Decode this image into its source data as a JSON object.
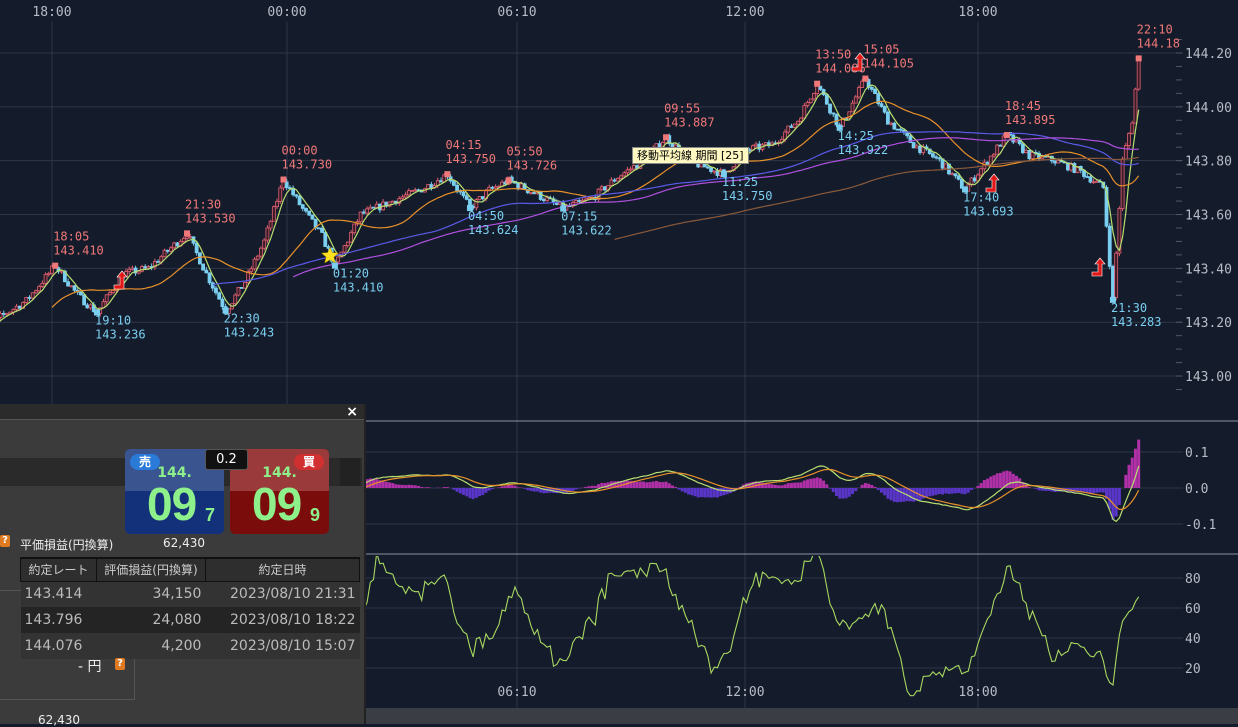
{
  "chart_data": {
    "type": "candlestick",
    "price_axis": {
      "ticks": [
        "144.20",
        "144.00",
        "143.80",
        "143.60",
        "143.40",
        "143.20",
        "143.00"
      ],
      "ylim": [
        142.92,
        144.26
      ]
    },
    "time_axis": {
      "top_ticks": [
        "18:00",
        "00:00",
        "06:10",
        "12:00",
        "18:00"
      ],
      "bottom_ticks": [
        "06:10",
        "12:00",
        "18:00"
      ]
    },
    "path": [
      [
        "16:00",
        143.13
      ],
      [
        "16:40",
        143.22
      ],
      [
        "17:20",
        143.28
      ],
      [
        "18:05",
        143.41,
        "H"
      ],
      [
        "18:40",
        143.3
      ],
      [
        "19:10",
        143.236,
        "L"
      ],
      [
        "19:50",
        143.38
      ],
      [
        "20:30",
        143.4
      ],
      [
        "21:30",
        143.53,
        "H"
      ],
      [
        "22:00",
        143.38
      ],
      [
        "22:30",
        143.243,
        "L"
      ],
      [
        "23:00",
        143.35
      ],
      [
        "23:30",
        143.5
      ],
      [
        "00:00",
        143.73,
        "H"
      ],
      [
        "00:30",
        143.62
      ],
      [
        "01:00",
        143.52
      ],
      [
        "01:20",
        143.41,
        "L"
      ],
      [
        "02:00",
        143.6
      ],
      [
        "03:00",
        143.66
      ],
      [
        "03:40",
        143.7
      ],
      [
        "04:15",
        143.75,
        "H"
      ],
      [
        "04:50",
        143.624,
        "L"
      ],
      [
        "05:20",
        143.69
      ],
      [
        "05:50",
        143.726,
        "H"
      ],
      [
        "06:30",
        143.68
      ],
      [
        "07:15",
        143.622,
        "L"
      ],
      [
        "08:00",
        143.66
      ],
      [
        "08:40",
        143.74
      ],
      [
        "09:20",
        143.8
      ],
      [
        "09:55",
        143.887,
        "H"
      ],
      [
        "10:30",
        143.8
      ],
      [
        "11:25",
        143.75,
        "L"
      ],
      [
        "12:00",
        143.84
      ],
      [
        "12:40",
        143.86
      ],
      [
        "13:20",
        143.95
      ],
      [
        "13:50",
        144.086,
        "H"
      ],
      [
        "14:25",
        143.922,
        "L"
      ],
      [
        "15:05",
        144.105,
        "H"
      ],
      [
        "15:40",
        143.95
      ],
      [
        "16:20",
        143.86
      ],
      [
        "17:00",
        143.8
      ],
      [
        "17:40",
        143.693,
        "L"
      ],
      [
        "18:15",
        143.8
      ],
      [
        "18:45",
        143.895,
        "H"
      ],
      [
        "19:20",
        143.82
      ],
      [
        "20:00",
        143.8
      ],
      [
        "20:40",
        143.76
      ],
      [
        "21:15",
        143.7
      ],
      [
        "21:30",
        143.283,
        "L"
      ],
      [
        "21:45",
        143.8
      ],
      [
        "22:00",
        143.95
      ],
      [
        "22:10",
        144.18,
        "H"
      ]
    ],
    "annotations": [
      {
        "time": "18:05",
        "price": "143.410",
        "kind": "high"
      },
      {
        "time": "19:10",
        "price": "143.236",
        "kind": "low"
      },
      {
        "time": "21:30",
        "price": "143.530",
        "kind": "high"
      },
      {
        "time": "22:30",
        "price": "143.243",
        "kind": "low"
      },
      {
        "time": "00:00",
        "price": "143.730",
        "kind": "high"
      },
      {
        "time": "01:20",
        "price": "143.410",
        "kind": "low"
      },
      {
        "time": "04:15",
        "price": "143.750",
        "kind": "high"
      },
      {
        "time": "04:50",
        "price": "143.624",
        "kind": "low"
      },
      {
        "time": "05:50",
        "price": "143.726",
        "kind": "high"
      },
      {
        "time": "07:15",
        "price": "143.622",
        "kind": "low"
      },
      {
        "time": "09:55",
        "price": "143.887",
        "kind": "high"
      },
      {
        "time": "11:25",
        "price": "143.750",
        "kind": "low"
      },
      {
        "time": "13:50",
        "price": "144.086",
        "kind": "high"
      },
      {
        "time": "14:25",
        "price": "143.922",
        "kind": "low"
      },
      {
        "time": "15:05",
        "price": "144.105",
        "kind": "high"
      },
      {
        "time": "17:40",
        "price": "143.693",
        "kind": "low"
      },
      {
        "time": "18:45",
        "price": "143.895",
        "kind": "high"
      },
      {
        "time": "21:30",
        "price": "143.283",
        "kind": "low"
      },
      {
        "time": "22:10",
        "price": "144.18",
        "kind": "high"
      }
    ],
    "moving_averages": [
      {
        "color": "#b8e070"
      },
      {
        "color": "#e8902a"
      },
      {
        "color": "#5a5ae8"
      },
      {
        "color": "#b050e0"
      },
      {
        "color": "#8a5a3a"
      }
    ],
    "macd_axis": {
      "ticks": [
        "0.1",
        "0.0",
        "-0.1"
      ]
    },
    "oscillator_axis": {
      "ticks": [
        "80",
        "60",
        "40",
        "20"
      ]
    },
    "colors": {
      "up": "#e06070",
      "down": "#7acff0",
      "high_label": "#f07878",
      "low_label": "#7acff0",
      "background": "#141b2b",
      "grid": "#2e3648"
    }
  },
  "tooltip": "移動平均線 期間 [25]",
  "panel": {
    "close": "×",
    "sell": {
      "label": "売",
      "prefix": "144.",
      "big": "09",
      "pip": "7"
    },
    "buy": {
      "label": "買",
      "prefix": "144.",
      "big": "09",
      "pip": "9"
    },
    "spread": "0.2",
    "pl_label": "平価損益(円換算)",
    "pl_value": "62,430",
    "help": "?",
    "table": {
      "headers": [
        "約定レート",
        "評価損益(円換算)",
        "約定日時"
      ],
      "rows": [
        [
          "143.414",
          "34,150",
          "2023/08/10 21:31"
        ],
        [
          "143.796",
          "24,080",
          "2023/08/10 18:22"
        ],
        [
          "144.076",
          "4,200",
          "2023/08/10 15:07"
        ]
      ]
    },
    "yen": "- 円",
    "total": "62,430"
  }
}
